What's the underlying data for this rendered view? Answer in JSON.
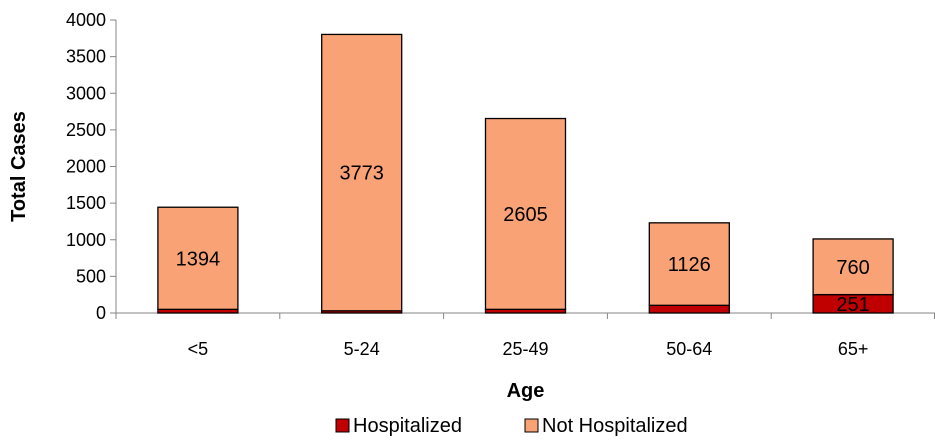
{
  "chart_data": {
    "type": "bar",
    "stacked": true,
    "title": "",
    "xlabel": "Age",
    "ylabel": "Total Cases",
    "ylim": [
      0,
      4000
    ],
    "yticks": [
      0,
      500,
      1000,
      1500,
      2000,
      2500,
      3000,
      3500,
      4000
    ],
    "categories": [
      "<5",
      "5-24",
      "25-49",
      "50-64",
      "65+"
    ],
    "series": [
      {
        "name": "Hospitalized",
        "values": [
          50,
          30,
          50,
          105,
          251
        ],
        "labeled": [
          false,
          false,
          false,
          false,
          true
        ],
        "color": "#C00000"
      },
      {
        "name": "Not Hospitalized",
        "values": [
          1394,
          3773,
          2605,
          1126,
          760
        ],
        "labeled": [
          true,
          true,
          true,
          true,
          true
        ],
        "color": "#F9A276"
      }
    ],
    "grid": false,
    "legend_position": "bottom"
  }
}
